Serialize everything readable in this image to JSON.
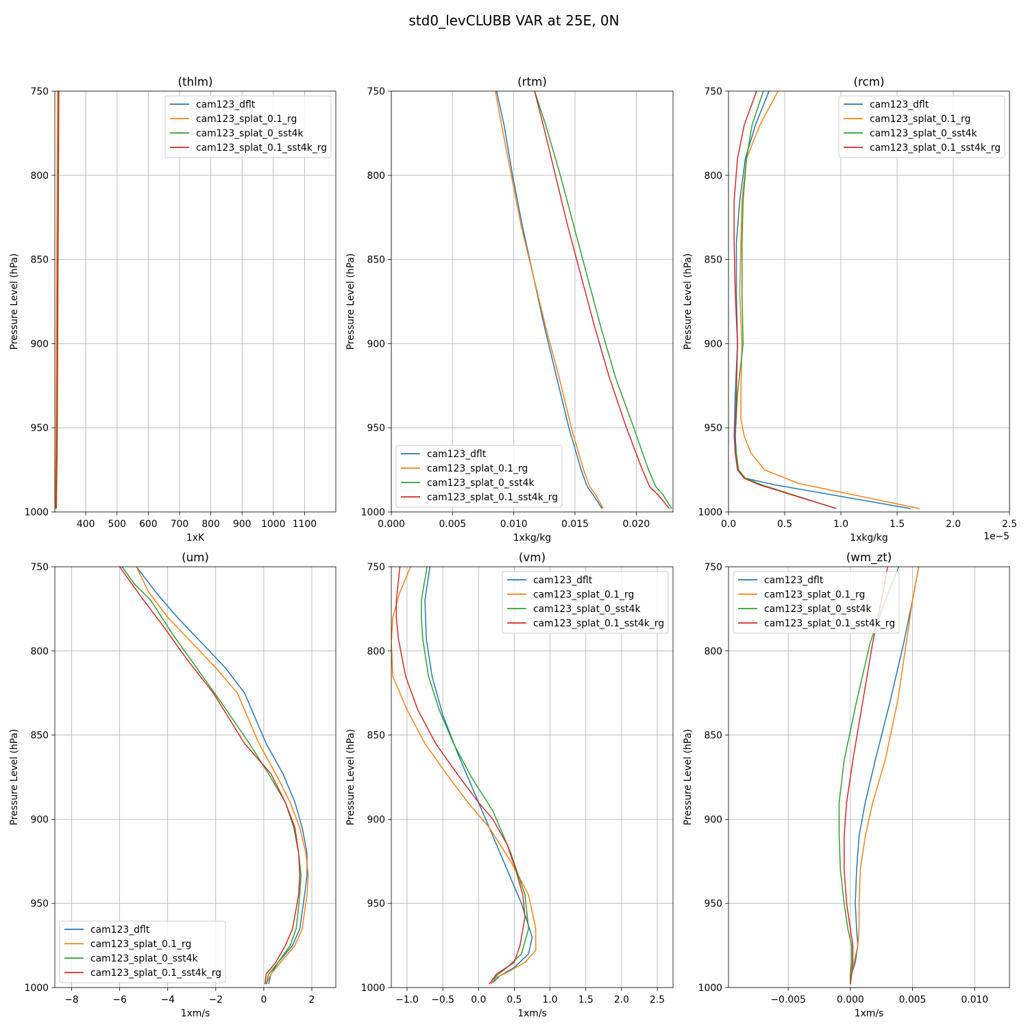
{
  "suptitle": "std0_levCLUBB VAR at 25E, 0N",
  "colors": {
    "cam123_dflt": "#1f77b4",
    "cam123_splat_0.1_rg": "#ff7f0e",
    "cam123_splat_0_sst4k": "#2ca02c",
    "cam123_splat_0.1_sst4k_rg": "#d62728"
  },
  "chart_data": [
    {
      "type": "line",
      "title": "(thlm)",
      "xlabel": "1xK",
      "ylabel": "Pressure Level (hPa)",
      "xlim": [
        301,
        1200
      ],
      "ylim": [
        1000,
        750
      ],
      "xticks": [
        400,
        500,
        600,
        700,
        800,
        900,
        1000,
        1100
      ],
      "xtick_labels": [
        "400",
        "500",
        "600",
        "700",
        "800",
        "900",
        "1000",
        "1100"
      ],
      "yticks": [
        750,
        800,
        850,
        900,
        950,
        1000
      ],
      "ytick_labels": [
        "750",
        "800",
        "850",
        "900",
        "950",
        "1000"
      ],
      "x_offset": "",
      "legend": "upper-right",
      "series": [
        {
          "name": "cam123_dflt",
          "x": [
            311,
            310,
            309,
            308,
            307,
            306,
            305,
            304,
            303
          ],
          "y": [
            750,
            790,
            830,
            870,
            910,
            950,
            970,
            985,
            998
          ]
        },
        {
          "name": "cam123_splat_0.1_rg",
          "x": [
            310,
            309,
            308,
            307,
            306,
            305,
            304,
            303,
            302
          ],
          "y": [
            750,
            790,
            830,
            870,
            910,
            950,
            970,
            985,
            998
          ]
        },
        {
          "name": "cam123_splat_0_sst4k",
          "x": [
            314,
            313,
            312,
            311,
            310,
            309,
            308,
            307,
            306
          ],
          "y": [
            750,
            790,
            830,
            870,
            910,
            950,
            970,
            985,
            998
          ]
        },
        {
          "name": "cam123_splat_0.1_sst4k_rg",
          "x": [
            313,
            312,
            311,
            310,
            309,
            308,
            307,
            306,
            305
          ],
          "y": [
            750,
            790,
            830,
            870,
            910,
            950,
            970,
            985,
            998
          ]
        }
      ]
    },
    {
      "type": "line",
      "title": "(rtm)",
      "xlabel": "1xkg/kg",
      "ylabel": "Pressure Level (hPa)",
      "xlim": [
        0,
        0.023
      ],
      "ylim": [
        1000,
        750
      ],
      "xticks": [
        0,
        0.005,
        0.01,
        0.015,
        0.02
      ],
      "xtick_labels": [
        "0.000",
        "0.005",
        "0.010",
        "0.015",
        "0.020"
      ],
      "yticks": [
        750,
        800,
        850,
        900,
        950,
        1000
      ],
      "ytick_labels": [
        "750",
        "800",
        "850",
        "900",
        "950",
        "1000"
      ],
      "x_offset": "",
      "legend": "lower-left",
      "series": [
        {
          "name": "cam123_dflt",
          "x": [
            0.0086,
            0.0092,
            0.0099,
            0.0107,
            0.0116,
            0.0125,
            0.0135,
            0.0145,
            0.0155,
            0.016,
            0.0165,
            0.0172
          ],
          "y": [
            750,
            770,
            800,
            830,
            860,
            890,
            920,
            950,
            975,
            985,
            990,
            998
          ]
        },
        {
          "name": "cam123_splat_0.1_rg",
          "x": [
            0.0085,
            0.009,
            0.0098,
            0.0106,
            0.0116,
            0.0126,
            0.0137,
            0.0147,
            0.0157,
            0.0162,
            0.0167,
            0.0173
          ],
          "y": [
            750,
            770,
            800,
            830,
            860,
            890,
            920,
            950,
            975,
            985,
            990,
            998
          ]
        },
        {
          "name": "cam123_splat_0_sst4k",
          "x": [
            0.0117,
            0.0126,
            0.0138,
            0.0149,
            0.016,
            0.0171,
            0.0183,
            0.0198,
            0.021,
            0.0216,
            0.0222,
            0.0229
          ],
          "y": [
            750,
            770,
            800,
            830,
            860,
            890,
            920,
            950,
            975,
            985,
            990,
            998
          ]
        },
        {
          "name": "cam123_splat_0.1_sst4k_rg",
          "x": [
            0.0117,
            0.0124,
            0.0134,
            0.0144,
            0.0155,
            0.0166,
            0.0178,
            0.0192,
            0.0205,
            0.0211,
            0.0218,
            0.0227
          ],
          "y": [
            750,
            770,
            800,
            830,
            860,
            890,
            920,
            950,
            975,
            985,
            990,
            998
          ]
        }
      ]
    },
    {
      "type": "line",
      "title": "(rcm)",
      "xlabel": "1xkg/kg",
      "ylabel": "Pressure Level (hPa)",
      "xlim": [
        0,
        2.5e-05
      ],
      "ylim": [
        1000,
        750
      ],
      "xticks": [
        0,
        5e-06,
        1e-05,
        1.5e-05,
        2e-05,
        2.5e-05
      ],
      "xtick_labels": [
        "0.0",
        "0.5",
        "1.0",
        "1.5",
        "2.0",
        "2.5"
      ],
      "yticks": [
        750,
        800,
        850,
        900,
        950,
        1000
      ],
      "ytick_labels": [
        "750",
        "800",
        "850",
        "900",
        "950",
        "1000"
      ],
      "x_offset": "1e−5",
      "legend": "upper-right",
      "series": [
        {
          "name": "cam123_dflt",
          "x": [
            3.6e-06,
            2.4e-06,
            1.5e-06,
            1e-06,
            7e-07,
            7e-07,
            8e-07,
            6e-07,
            5e-07,
            6e-07,
            8e-07,
            1.5e-06,
            4.2e-06,
            1.62e-05
          ],
          "y": [
            750,
            770,
            790,
            815,
            840,
            870,
            900,
            930,
            955,
            965,
            975,
            980,
            984,
            998
          ]
        },
        {
          "name": "cam123_splat_0.1_rg",
          "x": [
            4.4e-06,
            2.8e-06,
            1.6e-06,
            1.2e-06,
            1.1e-06,
            1e-06,
            1.2e-06,
            1.1e-06,
            1.1e-06,
            1.4e-06,
            2e-06,
            3.2e-06,
            6.2e-06,
            1.7e-05
          ],
          "y": [
            750,
            770,
            790,
            815,
            840,
            870,
            900,
            930,
            945,
            955,
            965,
            975,
            983,
            998
          ]
        },
        {
          "name": "cam123_splat_0_sst4k",
          "x": [
            3.1e-06,
            2.1e-06,
            1.6e-06,
            1.3e-06,
            1.2e-06,
            1.2e-06,
            1.3e-06,
            8e-07,
            6e-07,
            7e-07,
            9e-07,
            1.5e-06,
            3e-06,
            9.6e-06
          ],
          "y": [
            750,
            770,
            790,
            815,
            840,
            870,
            900,
            930,
            955,
            965,
            975,
            980,
            984,
            998
          ]
        },
        {
          "name": "cam123_splat_0.1_sst4k_rg",
          "x": [
            2.5e-06,
            1.4e-06,
            8e-07,
            5e-07,
            5e-07,
            6e-07,
            8e-07,
            7e-07,
            6e-07,
            6e-07,
            8e-07,
            1.4e-06,
            2.8e-06,
            9.6e-06
          ],
          "y": [
            750,
            770,
            790,
            815,
            840,
            870,
            900,
            930,
            955,
            965,
            975,
            980,
            984,
            998
          ]
        }
      ]
    },
    {
      "type": "line",
      "title": "(um)",
      "xlabel": "1xm/s",
      "ylabel": "Pressure Level (hPa)",
      "xlim": [
        -8.7,
        3.0
      ],
      "ylim": [
        1000,
        750
      ],
      "xticks": [
        -8,
        -6,
        -4,
        -2,
        0,
        2
      ],
      "xtick_labels": [
        "−8",
        "−6",
        "−4",
        "−2",
        "0",
        "2"
      ],
      "yticks": [
        750,
        800,
        850,
        900,
        950,
        1000
      ],
      "ytick_labels": [
        "750",
        "800",
        "850",
        "900",
        "950",
        "1000"
      ],
      "x_offset": "",
      "legend": "lower-left",
      "series": [
        {
          "name": "cam123_dflt",
          "x": [
            -5.3,
            -4.5,
            -3.6,
            -2.6,
            -1.6,
            -0.8,
            0.1,
            0.8,
            1.3,
            1.6,
            1.8,
            1.8,
            1.7,
            1.5,
            1.2,
            0.6,
            0.3,
            0.2
          ],
          "y": [
            750,
            765,
            780,
            795,
            810,
            825,
            855,
            873,
            890,
            905,
            920,
            933,
            945,
            965,
            975,
            985,
            992,
            998
          ]
        },
        {
          "name": "cam123_splat_0.1_rg",
          "x": [
            -5.3,
            -4.8,
            -4.0,
            -3.0,
            -2.0,
            -1.1,
            -0.2,
            0.5,
            1.1,
            1.5,
            1.75,
            1.85,
            1.8,
            1.6,
            1.3,
            0.7,
            0.3,
            0.1
          ],
          "y": [
            750,
            765,
            780,
            795,
            810,
            825,
            855,
            873,
            890,
            905,
            920,
            933,
            945,
            965,
            975,
            985,
            992,
            998
          ]
        },
        {
          "name": "cam123_splat_0_sst4k",
          "x": [
            -5.9,
            -5.4,
            -4.7,
            -3.8,
            -2.8,
            -1.8,
            -0.6,
            0.2,
            0.9,
            1.25,
            1.45,
            1.55,
            1.5,
            1.35,
            1.1,
            0.6,
            0.2,
            0.1
          ],
          "y": [
            750,
            760,
            770,
            790,
            810,
            830,
            855,
            873,
            890,
            905,
            920,
            933,
            945,
            965,
            975,
            985,
            992,
            998
          ]
        },
        {
          "name": "cam123_splat_0.1_sst4k_rg",
          "x": [
            -6.0,
            -5.6,
            -5.1,
            -4.2,
            -3.2,
            -2.1,
            -0.8,
            0.3,
            0.9,
            1.3,
            1.45,
            1.5,
            1.45,
            1.2,
            0.9,
            0.5,
            0.1,
            0.05
          ],
          "y": [
            750,
            758,
            768,
            785,
            805,
            825,
            855,
            873,
            890,
            905,
            920,
            933,
            945,
            965,
            975,
            985,
            992,
            998
          ]
        }
      ]
    },
    {
      "type": "line",
      "title": "(vm)",
      "xlabel": "1xm/s",
      "ylabel": "Pressure Level (hPa)",
      "xlim": [
        -1.22,
        2.72
      ],
      "ylim": [
        1000,
        750
      ],
      "xticks": [
        -1.0,
        -0.5,
        0.0,
        0.5,
        1.0,
        1.5,
        2.0,
        2.5
      ],
      "xtick_labels": [
        "−1.0",
        "−0.5",
        "0.0",
        "0.5",
        "1.0",
        "1.5",
        "2.0",
        "2.5"
      ],
      "yticks": [
        750,
        800,
        850,
        900,
        950,
        1000
      ],
      "ytick_labels": [
        "750",
        "800",
        "850",
        "900",
        "950",
        "1000"
      ],
      "x_offset": "",
      "legend": "upper-right",
      "series": [
        {
          "name": "cam123_dflt",
          "x": [
            -0.68,
            -0.75,
            -0.73,
            -0.65,
            -0.5,
            -0.3,
            -0.1,
            0.15,
            0.4,
            0.6,
            0.75,
            0.7,
            0.5,
            0.3,
            0.2
          ],
          "y": [
            750,
            770,
            793,
            815,
            838,
            860,
            880,
            905,
            930,
            950,
            970,
            980,
            988,
            993,
            997
          ]
        },
        {
          "name": "cam123_splat_0.1_rg",
          "x": [
            -0.95,
            -1.1,
            -1.2,
            -1.22,
            -1.2,
            -1.0,
            -0.75,
            -0.45,
            -0.15,
            0.15,
            0.45,
            0.7,
            0.8,
            0.8,
            0.65,
            0.4,
            0.2,
            0.18
          ],
          "y": [
            750,
            765,
            780,
            795,
            815,
            835,
            855,
            873,
            890,
            905,
            925,
            945,
            965,
            978,
            985,
            991,
            995,
            998
          ]
        },
        {
          "name": "cam123_splat_0_sst4k",
          "x": [
            -0.72,
            -0.8,
            -0.8,
            -0.78,
            -0.7,
            -0.55,
            -0.35,
            -0.1,
            0.2,
            0.45,
            0.65,
            0.7,
            0.6,
            0.4,
            0.25,
            0.2
          ],
          "y": [
            750,
            770,
            780,
            793,
            815,
            835,
            855,
            875,
            895,
            920,
            945,
            965,
            980,
            988,
            993,
            997
          ]
        },
        {
          "name": "cam123_splat_0.1_sst4k_rg",
          "x": [
            -1.1,
            -1.15,
            -1.15,
            -1.12,
            -1.02,
            -0.85,
            -0.6,
            -0.3,
            0.0,
            0.2,
            0.4,
            0.52,
            0.62,
            0.65,
            0.58,
            0.5,
            0.25,
            0.15
          ],
          "y": [
            750,
            770,
            780,
            793,
            815,
            835,
            855,
            873,
            890,
            900,
            915,
            930,
            945,
            958,
            975,
            985,
            992,
            998
          ]
        }
      ]
    },
    {
      "type": "line",
      "title": "(wm_zt)",
      "xlabel": "1xm/s",
      "ylabel": "Pressure Level (hPa)",
      "xlim": [
        -0.0098,
        0.0128
      ],
      "ylim": [
        1000,
        750
      ],
      "xticks": [
        -0.005,
        0.0,
        0.005,
        0.01
      ],
      "xtick_labels": [
        "−0.005",
        "0.000",
        "0.005",
        "0.010"
      ],
      "yticks": [
        750,
        800,
        850,
        900,
        950,
        1000
      ],
      "ytick_labels": [
        "750",
        "800",
        "850",
        "900",
        "950",
        "1000"
      ],
      "x_offset": "",
      "legend": "upper-left",
      "series": [
        {
          "name": "cam123_dflt",
          "x": [
            0.0055,
            0.005,
            0.0043,
            0.0032,
            0.002,
            0.0012,
            0.0007,
            0.0005,
            0.0004,
            0.0005,
            0.0006,
            0.0004,
            0.0001,
            0.0
          ],
          "y": [
            750,
            770,
            795,
            830,
            865,
            890,
            910,
            930,
            950,
            965,
            975,
            985,
            992,
            998
          ]
        },
        {
          "name": "cam123_splat_0.1_rg",
          "x": [
            0.0055,
            0.005,
            0.0045,
            0.0038,
            0.0028,
            0.0018,
            0.0012,
            0.0008,
            0.0007,
            0.0007,
            0.0006,
            0.0003,
            0.0001,
            0.0
          ],
          "y": [
            750,
            770,
            795,
            830,
            865,
            890,
            910,
            930,
            950,
            965,
            975,
            985,
            992,
            998
          ]
        },
        {
          "name": "cam123_splat_0_sst4k",
          "x": [
            0.0039,
            0.0028,
            0.0016,
            0.0005,
            -0.0005,
            -0.0009,
            -0.0009,
            -0.0008,
            -0.0005,
            -0.0002,
            0.0001,
            0.0001,
            0.0,
            0.0
          ],
          "y": [
            750,
            770,
            795,
            830,
            865,
            890,
            910,
            930,
            950,
            965,
            975,
            985,
            992,
            998
          ]
        },
        {
          "name": "cam123_splat_0.1_sst4k_rg",
          "x": [
            0.003,
            0.0025,
            0.0018,
            0.001,
            0.0002,
            -0.0003,
            -0.0005,
            -0.0005,
            -0.0003,
            0.0,
            0.0002,
            0.0002,
            0.0001,
            0.0
          ],
          "y": [
            750,
            770,
            795,
            830,
            865,
            890,
            910,
            930,
            950,
            965,
            975,
            985,
            992,
            998
          ]
        }
      ]
    }
  ]
}
